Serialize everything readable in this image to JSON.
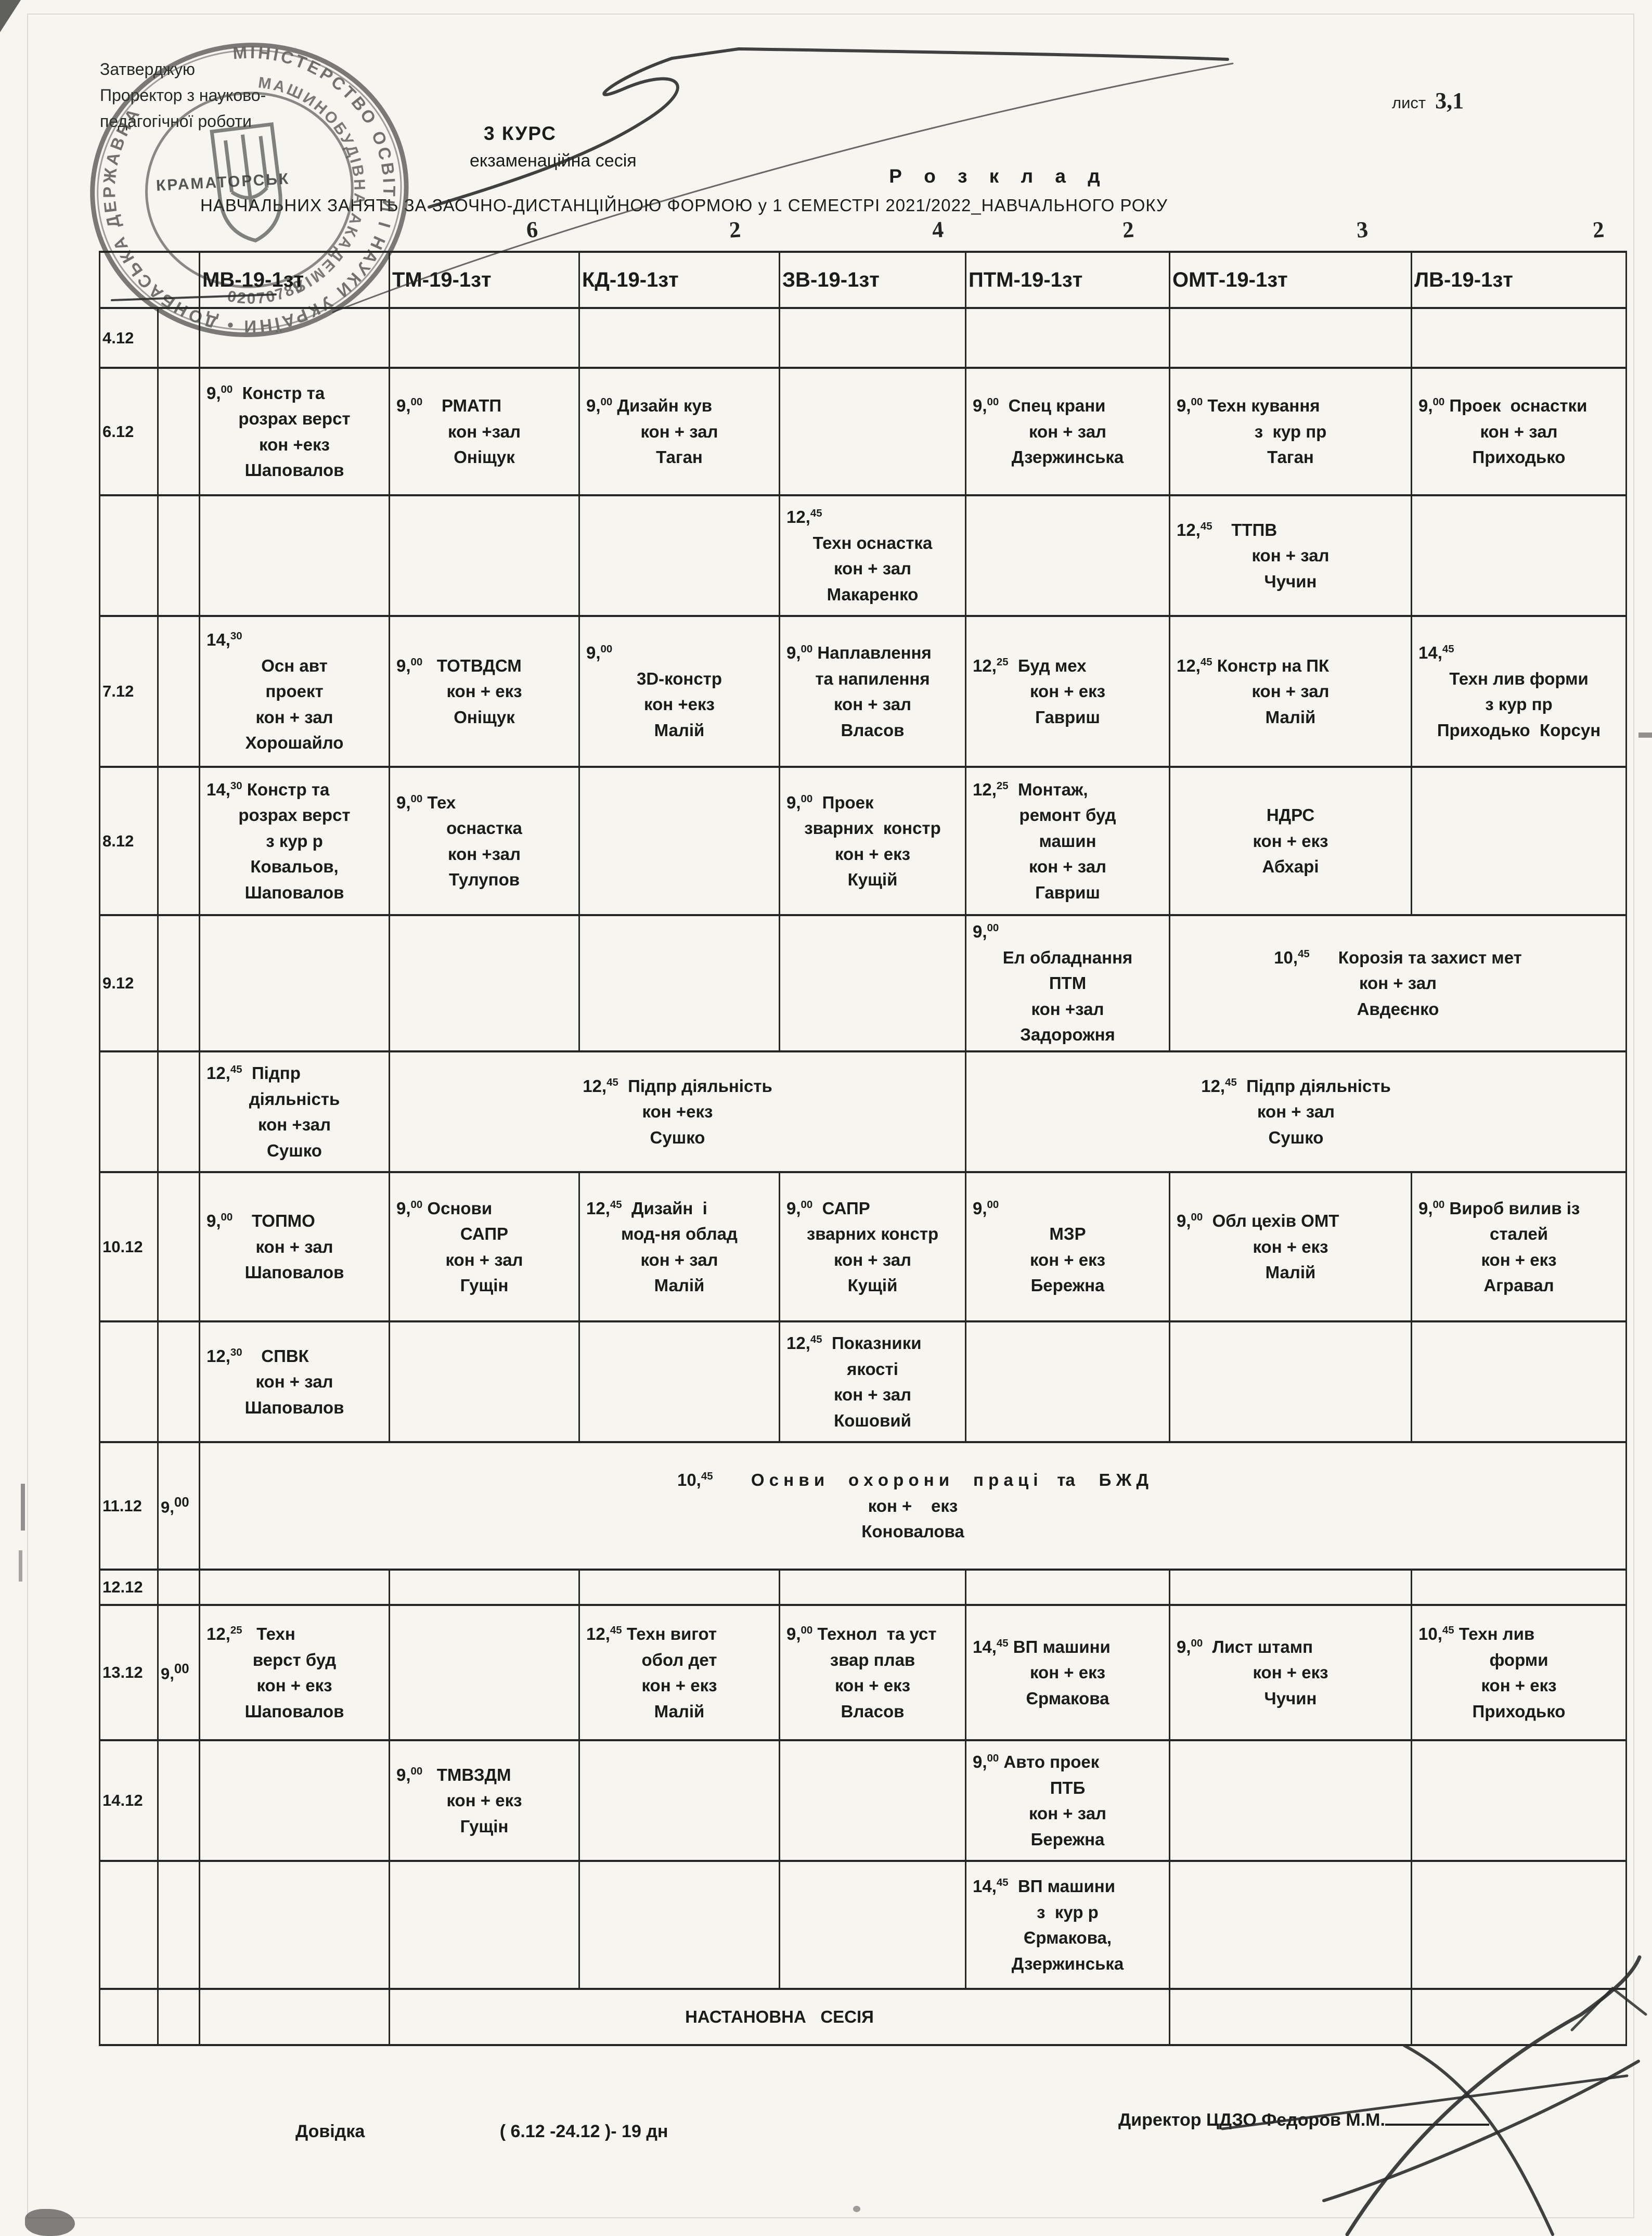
{
  "page": {
    "approval": {
      "line1": "Затверджую",
      "line2": "Проректор з науково-",
      "line3": "педагогічної роботи"
    },
    "sheet": {
      "label": "лист",
      "number": "3,1"
    },
    "course": "3 КУРС",
    "session": "екзаменаційна сесія",
    "title": "Р о з к л а д",
    "subtitle": "НАВЧАЛЬНИХ ЗАНЯТЬ ЗА ЗАОЧНО-ДИСТАНЦІЙНОЮ ФОРМОЮ у 1 СЕМЕСТРІ  2021/2022_НАВЧАЛЬНОГО РОКУ",
    "city": "КРАМАТОРСЬК",
    "stamp": {
      "outer_text": "МІНІСТЕРСТВО ОСВІТИ І НАУКИ УКРАЇНИ  •  ДОНБАСЬКА ДЕРЖАВНА",
      "inner_text": "МАШИНОБУДІВНА АКАДЕМІЯ",
      "code": "02070789"
    },
    "handwritten_counts": [
      "6",
      "2",
      "4",
      "2",
      "3",
      "2"
    ],
    "footer": {
      "reference_label": "Довідка",
      "reference_value": "( 6.12 -24.12 )- 19 дн",
      "director_line": "Директор   ЦДЗО   Федоров М.М."
    },
    "setup_session": "НАСТАНОВНА   СЕСІЯ"
  },
  "schedule": {
    "groups": [
      "МВ-19-1зт",
      "ТМ-19-1зт",
      "КД-19-1зт",
      "ЗВ-19-1зт",
      "ПТМ-19-1зт",
      "ОМТ-19-1зт",
      "ЛВ-19-1зт"
    ],
    "rows": [
      {
        "date": "4.12",
        "sub": "",
        "cells": [
          {
            "span": 1,
            "lines": []
          },
          {
            "span": 1,
            "lines": []
          },
          {
            "span": 1,
            "lines": []
          },
          {
            "span": 1,
            "lines": []
          },
          {
            "span": 1,
            "lines": []
          },
          {
            "span": 1,
            "lines": []
          },
          {
            "span": 1,
            "lines": []
          }
        ]
      },
      {
        "date": "6.12",
        "sub": "",
        "cells": [
          {
            "span": 1,
            "lines": [
              "9,00  Констр та",
              "розрах верст",
              "кон +екз",
              "Шаповалов"
            ]
          },
          {
            "span": 1,
            "lines": [
              "9,00    РМАТП",
              "кон +зал",
              "Оніщук"
            ]
          },
          {
            "span": 1,
            "lines": [
              "9,00 Дизайн кув",
              "кон + зал",
              "Таган"
            ]
          },
          {
            "span": 1,
            "lines": []
          },
          {
            "span": 1,
            "lines": [
              "9,00  Спец крани",
              "кон + зал",
              "Дзержинська"
            ]
          },
          {
            "span": 1,
            "lines": [
              "9,00 Техн кування",
              "з  кур пр",
              "Таган"
            ]
          },
          {
            "span": 1,
            "lines": [
              "9,00 Проек  оснастки",
              "кон + зал",
              "Приходько"
            ]
          }
        ]
      },
      {
        "date": "",
        "sub": "",
        "cells": [
          {
            "span": 1,
            "lines": []
          },
          {
            "span": 1,
            "lines": []
          },
          {
            "span": 1,
            "lines": []
          },
          {
            "span": 1,
            "lines": [
              "12,45",
              "Техн оснастка",
              "кон + зал",
              "Макаренко"
            ]
          },
          {
            "span": 1,
            "lines": []
          },
          {
            "span": 1,
            "lines": [
              "12,45    ТТПВ",
              "кон + зал",
              "Чучин"
            ]
          },
          {
            "span": 1,
            "lines": []
          }
        ]
      },
      {
        "date": "7.12",
        "sub": "",
        "cells": [
          {
            "span": 1,
            "lines": [
              "14,30",
              "Осн авт",
              "проект",
              "кон + зал",
              "Хорошайло"
            ]
          },
          {
            "span": 1,
            "lines": [
              "9,00   ТОТВДСМ",
              "кон + екз",
              "Оніщук"
            ]
          },
          {
            "span": 1,
            "lines": [
              "9,00",
              "3D-констр",
              "кон +екз",
              "Малій"
            ]
          },
          {
            "span": 1,
            "lines": [
              "9,00 Наплавлення",
              "та напилення",
              "кон + зал",
              "Власов"
            ]
          },
          {
            "span": 1,
            "lines": [
              "12,25  Буд мех",
              "кон + екз",
              "Гавриш"
            ]
          },
          {
            "span": 1,
            "lines": [
              "12,45 Констр на ПК",
              "кон + зал",
              "Малій"
            ]
          },
          {
            "span": 1,
            "lines": [
              "14,45",
              "Техн лив форми",
              "з кур пр",
              "Приходько  Корсун"
            ]
          }
        ]
      },
      {
        "date": "8.12",
        "sub": "",
        "cells": [
          {
            "span": 1,
            "lines": [
              "14,30 Констр та",
              "розрах верст",
              "з кур р",
              "Ковальов,",
              "Шаповалов"
            ]
          },
          {
            "span": 1,
            "lines": [
              "9,00 Тех",
              "оснастка",
              "кон +зал",
              "Тулупов"
            ]
          },
          {
            "span": 1,
            "lines": []
          },
          {
            "span": 1,
            "lines": [
              "9,00  Проек",
              "зварних  констр",
              "кон + екз",
              "Кущій"
            ]
          },
          {
            "span": 1,
            "lines": [
              "12,25  Монтаж,",
              "ремонт буд",
              "машин",
              "кон + зал",
              "Гавриш"
            ]
          },
          {
            "span": 1,
            "lines": [
              "НДРС",
              "кон + екз",
              "Абхарі"
            ]
          },
          {
            "span": 1,
            "lines": []
          }
        ]
      },
      {
        "date": "9.12",
        "sub": "",
        "cells": [
          {
            "span": 1,
            "lines": []
          },
          {
            "span": 1,
            "lines": []
          },
          {
            "span": 1,
            "lines": []
          },
          {
            "span": 1,
            "lines": []
          },
          {
            "span": 1,
            "lines": [
              "9,00",
              "Ел обладнання",
              "ПТМ",
              "кон +зал",
              "Задорожня"
            ]
          },
          {
            "span": 2,
            "lines": [
              "10,45      Корозія та захист мет",
              "кон + зал",
              "Авдеєнко"
            ]
          }
        ]
      },
      {
        "date": "",
        "sub": "",
        "cells": [
          {
            "span": 1,
            "lines": [
              "12,45  Підпр",
              "діяльність",
              "кон +зал",
              "Сушко"
            ]
          },
          {
            "span": 3,
            "lines": [
              "12,45  Підпр діяльність",
              "кон +екз",
              "Сушко"
            ]
          },
          {
            "span": 3,
            "lines": [
              "12,45  Підпр діяльність",
              "кон + зал",
              "Сушко"
            ]
          }
        ]
      },
      {
        "date": "10.12",
        "sub": "",
        "cells": [
          {
            "span": 1,
            "lines": [
              "9,00    ТОПМО",
              "кон + зал",
              "Шаповалов"
            ]
          },
          {
            "span": 1,
            "lines": [
              "9,00 Основи",
              "САПР",
              "кон + зал",
              "Гущін"
            ]
          },
          {
            "span": 1,
            "lines": [
              "12,45  Дизайн  і",
              "мод-ня облад",
              "кон + зал",
              "Малій"
            ]
          },
          {
            "span": 1,
            "lines": [
              "9,00  САПР",
              "зварних констр",
              "кон + зал",
              "Кущій"
            ]
          },
          {
            "span": 1,
            "lines": [
              "9,00",
              "МЗР",
              "кон + екз",
              "Бережна"
            ]
          },
          {
            "span": 1,
            "lines": [
              "9,00  Обл цехів ОМТ",
              "кон + екз",
              "Малій"
            ]
          },
          {
            "span": 1,
            "lines": [
              "9,00 Вироб вилив із",
              "сталей",
              "кон + екз",
              "Агравал"
            ]
          }
        ]
      },
      {
        "date": "",
        "sub": "",
        "cells": [
          {
            "span": 1,
            "lines": [
              "12,30    СПВК",
              "кон + зал",
              "Шаповалов"
            ]
          },
          {
            "span": 1,
            "lines": []
          },
          {
            "span": 1,
            "lines": []
          },
          {
            "span": 1,
            "lines": [
              "12,45  Показники",
              "якості",
              "кон + зал",
              "Кошовий"
            ]
          },
          {
            "span": 1,
            "lines": []
          },
          {
            "span": 1,
            "lines": []
          },
          {
            "span": 1,
            "lines": []
          }
        ]
      },
      {
        "date": "11.12",
        "sub": "9,00",
        "cells": [
          {
            "span": 7,
            "lines": [
              "10,45        О с н в и     о х о р о н и     п р а ц і    та     Б Ж Д",
              "кон +    екз",
              "Коновалова"
            ]
          }
        ]
      },
      {
        "date": "12.12",
        "sub": "",
        "cells": [
          {
            "span": 1,
            "lines": []
          },
          {
            "span": 1,
            "lines": []
          },
          {
            "span": 1,
            "lines": []
          },
          {
            "span": 1,
            "lines": []
          },
          {
            "span": 1,
            "lines": []
          },
          {
            "span": 1,
            "lines": []
          },
          {
            "span": 1,
            "lines": []
          }
        ]
      },
      {
        "date": "13.12",
        "sub": "9,00",
        "cells": [
          {
            "span": 1,
            "lines": [
              "12,25   Техн",
              "верст буд",
              "кон + екз",
              "Шаповалов"
            ]
          },
          {
            "span": 1,
            "lines": []
          },
          {
            "span": 1,
            "lines": [
              "12,45 Техн вигот",
              "обол дет",
              "кон + екз",
              "Малій"
            ]
          },
          {
            "span": 1,
            "lines": [
              "9,00 Технол  та уст",
              "звар плав",
              "кон + екз",
              "Власов"
            ]
          },
          {
            "span": 1,
            "lines": [
              "14,45 ВП машини",
              "кон + екз",
              "Єрмакова"
            ]
          },
          {
            "span": 1,
            "lines": [
              "9,00  Лист штамп",
              "кон + екз",
              "Чучин"
            ]
          },
          {
            "span": 1,
            "lines": [
              "10,45 Техн лив",
              "форми",
              "кон + екз",
              "Приходько"
            ]
          }
        ]
      },
      {
        "date": "14.12",
        "sub": "",
        "cells": [
          {
            "span": 1,
            "lines": []
          },
          {
            "span": 1,
            "lines": [
              "9,00   ТМВЗДМ",
              "кон + екз",
              "Гущін"
            ]
          },
          {
            "span": 1,
            "lines": []
          },
          {
            "span": 1,
            "lines": []
          },
          {
            "span": 1,
            "lines": [
              "9,00 Авто проек",
              "ПТБ",
              "кон + зал",
              "Бережна"
            ]
          },
          {
            "span": 1,
            "lines": []
          },
          {
            "span": 1,
            "lines": []
          }
        ]
      },
      {
        "date": "",
        "sub": "",
        "cells": [
          {
            "span": 1,
            "lines": []
          },
          {
            "span": 1,
            "lines": []
          },
          {
            "span": 1,
            "lines": []
          },
          {
            "span": 1,
            "lines": []
          },
          {
            "span": 1,
            "lines": [
              "14,45  ВП машини",
              "з  кур р",
              "Єрмакова,",
              "Дзержинська"
            ]
          },
          {
            "span": 1,
            "lines": []
          },
          {
            "span": 1,
            "lines": []
          }
        ]
      },
      {
        "date": "",
        "sub": "",
        "cells": [
          {
            "span": 1,
            "lines": []
          },
          {
            "span": 4,
            "lines": [
              "НАСТАНОВНА   СЕСІЯ"
            ]
          },
          {
            "span": 1,
            "lines": []
          },
          {
            "span": 1,
            "lines": []
          }
        ]
      }
    ]
  }
}
